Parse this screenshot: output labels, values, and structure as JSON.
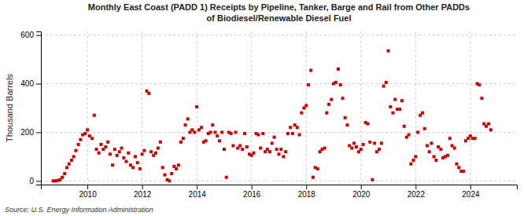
{
  "chart_data": {
    "type": "scatter",
    "title": "Monthly East Coast (PADD 1) Receipts by Pipeline, Tanker, Barge and Rail from Other PADDs\nof Biodiesel/Renewable Diesel Fuel",
    "ylabel": "Thousand Barrels",
    "annotations": [
      "Source: U.S. Energy Information Administration"
    ],
    "color": "#cc0000",
    "marker": "square",
    "grid": true,
    "xlim": [
      2008.3,
      2025.7
    ],
    "xticks": [
      2010,
      2012,
      2014,
      2016,
      2018,
      2020,
      2022,
      2024
    ],
    "ylim": [
      -15,
      615
    ],
    "yticks": [
      0,
      200,
      400,
      600
    ],
    "x": [
      2008.75,
      2008.83,
      2008.92,
      2009.0,
      2009.08,
      2009.17,
      2009.25,
      2009.33,
      2009.42,
      2009.5,
      2009.58,
      2009.67,
      2009.75,
      2009.83,
      2009.92,
      2010.0,
      2010.08,
      2010.17,
      2010.25,
      2010.33,
      2010.42,
      2010.5,
      2010.58,
      2010.67,
      2010.75,
      2010.83,
      2010.92,
      2011.0,
      2011.08,
      2011.17,
      2011.25,
      2011.33,
      2011.42,
      2011.5,
      2011.58,
      2011.67,
      2011.75,
      2011.83,
      2011.92,
      2012.0,
      2012.08,
      2012.17,
      2012.25,
      2012.33,
      2012.42,
      2012.5,
      2012.58,
      2012.67,
      2012.75,
      2012.83,
      2012.92,
      2013.0,
      2013.08,
      2013.17,
      2013.25,
      2013.33,
      2013.42,
      2013.5,
      2013.58,
      2013.67,
      2013.75,
      2013.83,
      2013.92,
      2014.0,
      2014.08,
      2014.17,
      2014.25,
      2014.33,
      2014.42,
      2014.5,
      2014.58,
      2014.67,
      2014.75,
      2014.83,
      2014.92,
      2015.0,
      2015.08,
      2015.17,
      2015.25,
      2015.33,
      2015.42,
      2015.5,
      2015.58,
      2015.67,
      2015.75,
      2015.83,
      2015.92,
      2016.0,
      2016.08,
      2016.17,
      2016.25,
      2016.33,
      2016.42,
      2016.5,
      2016.58,
      2016.67,
      2016.75,
      2016.83,
      2016.92,
      2017.0,
      2017.08,
      2017.17,
      2017.25,
      2017.33,
      2017.42,
      2017.5,
      2017.58,
      2017.67,
      2017.75,
      2017.83,
      2017.92,
      2018.0,
      2018.08,
      2018.17,
      2018.25,
      2018.33,
      2018.42,
      2018.5,
      2018.58,
      2018.67,
      2018.75,
      2018.83,
      2018.92,
      2019.0,
      2019.08,
      2019.17,
      2019.25,
      2019.33,
      2019.42,
      2019.5,
      2019.58,
      2019.67,
      2019.75,
      2019.83,
      2019.92,
      2020.0,
      2020.08,
      2020.17,
      2020.25,
      2020.33,
      2020.42,
      2020.5,
      2020.58,
      2020.67,
      2020.75,
      2020.83,
      2020.92,
      2021.0,
      2021.08,
      2021.17,
      2021.25,
      2021.33,
      2021.42,
      2021.5,
      2021.58,
      2021.67,
      2021.75,
      2021.83,
      2021.92,
      2022.0,
      2022.08,
      2022.17,
      2022.25,
      2022.33,
      2022.42,
      2022.5,
      2022.58,
      2022.67,
      2022.75,
      2022.83,
      2022.92,
      2023.0,
      2023.08,
      2023.17,
      2023.25,
      2023.33,
      2023.42,
      2023.5,
      2023.58,
      2023.67,
      2023.75,
      2023.83,
      2023.92,
      2024.0,
      2024.08,
      2024.17,
      2024.25,
      2024.33,
      2024.42,
      2024.5,
      2024.58,
      2024.67,
      2024.75
    ],
    "values": [
      0,
      0,
      2,
      5,
      15,
      30,
      55,
      70,
      85,
      100,
      125,
      150,
      170,
      190,
      195,
      210,
      185,
      175,
      270,
      130,
      115,
      150,
      130,
      140,
      160,
      110,
      65,
      130,
      105,
      120,
      135,
      95,
      80,
      115,
      65,
      55,
      100,
      75,
      50,
      110,
      125,
      370,
      360,
      120,
      105,
      115,
      135,
      160,
      55,
      25,
      5,
      0,
      30,
      60,
      50,
      65,
      160,
      175,
      230,
      255,
      200,
      210,
      200,
      305,
      210,
      220,
      160,
      165,
      195,
      200,
      230,
      200,
      185,
      165,
      200,
      130,
      15,
      200,
      195,
      145,
      200,
      135,
      145,
      130,
      195,
      140,
      110,
      105,
      115,
      195,
      190,
      135,
      195,
      120,
      130,
      120,
      155,
      180,
      130,
      110,
      130,
      100,
      120,
      195,
      220,
      195,
      230,
      220,
      190,
      280,
      300,
      310,
      395,
      455,
      15,
      55,
      50,
      120,
      130,
      135,
      280,
      315,
      335,
      400,
      405,
      460,
      395,
      340,
      260,
      230,
      145,
      135,
      155,
      140,
      120,
      130,
      150,
      240,
      235,
      160,
      5,
      155,
      120,
      130,
      155,
      390,
      405,
      535,
      305,
      280,
      335,
      295,
      295,
      330,
      225,
      180,
      190,
      70,
      85,
      100,
      200,
      270,
      280,
      215,
      145,
      120,
      155,
      100,
      85,
      140,
      130,
      95,
      100,
      105,
      175,
      145,
      135,
      70,
      55,
      40,
      40,
      165,
      175,
      185,
      175,
      175,
      400,
      395,
      340,
      235,
      225,
      235,
      210
    ]
  }
}
